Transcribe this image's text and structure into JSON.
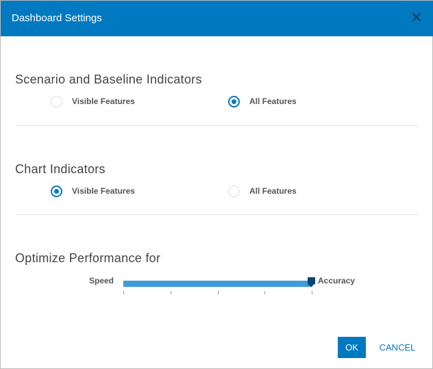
{
  "dialog": {
    "title": "Dashboard Settings",
    "close_icon": "close-icon"
  },
  "sections": [
    {
      "title": "Scenario and Baseline Indicators",
      "options": [
        {
          "label": "Visible Features",
          "selected": false
        },
        {
          "label": "All Features",
          "selected": true
        }
      ]
    },
    {
      "title": "Chart Indicators",
      "options": [
        {
          "label": "Visible Features",
          "selected": true
        },
        {
          "label": "All Features",
          "selected": false
        }
      ]
    }
  ],
  "performance": {
    "title": "Optimize Performance for",
    "min_label": "Speed",
    "max_label": "Accuracy",
    "value_percent": 100,
    "ticks": 5,
    "track_color": "#3d9cd8",
    "accent": "#0079c1"
  },
  "buttons": {
    "ok": "OK",
    "cancel": "CANCEL"
  }
}
